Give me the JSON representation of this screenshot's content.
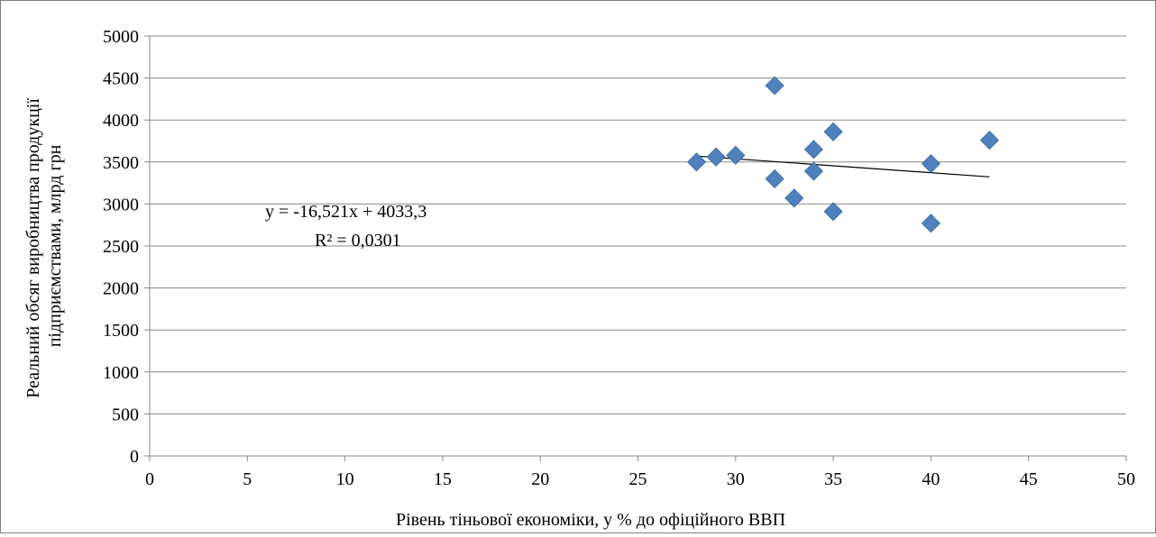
{
  "chart_data": {
    "type": "scatter",
    "xlabel": "Рівень тіньової економіки, у % до офіційного ВВП",
    "ylabel": [
      "Реальний обсяг виробництва продукції",
      "підприємствами, млрд грн"
    ],
    "xlim": [
      0,
      50
    ],
    "ylim": [
      0,
      5000
    ],
    "x_ticks": [
      0,
      5,
      10,
      15,
      20,
      25,
      30,
      35,
      40,
      45,
      50
    ],
    "y_ticks": [
      0,
      500,
      1000,
      1500,
      2000,
      2500,
      3000,
      3500,
      4000,
      4500,
      5000
    ],
    "grid": "horizontal",
    "marker_color": "#4f81bd",
    "trendline_color": "#000000",
    "points": [
      {
        "x": 28,
        "y": 3500
      },
      {
        "x": 29,
        "y": 3560
      },
      {
        "x": 30,
        "y": 3580
      },
      {
        "x": 32,
        "y": 4410
      },
      {
        "x": 32,
        "y": 3300
      },
      {
        "x": 33,
        "y": 3070
      },
      {
        "x": 34,
        "y": 3650
      },
      {
        "x": 34,
        "y": 3390
      },
      {
        "x": 35,
        "y": 3860
      },
      {
        "x": 35,
        "y": 2910
      },
      {
        "x": 40,
        "y": 3480
      },
      {
        "x": 40,
        "y": 2770
      },
      {
        "x": 43,
        "y": 3760
      }
    ],
    "trendline": {
      "slope": -16.521,
      "intercept": 4033.3,
      "x_range": [
        28,
        43
      ],
      "equation": "y = -16,521x + 4033,3",
      "r_squared": "R² = 0,0301"
    }
  }
}
